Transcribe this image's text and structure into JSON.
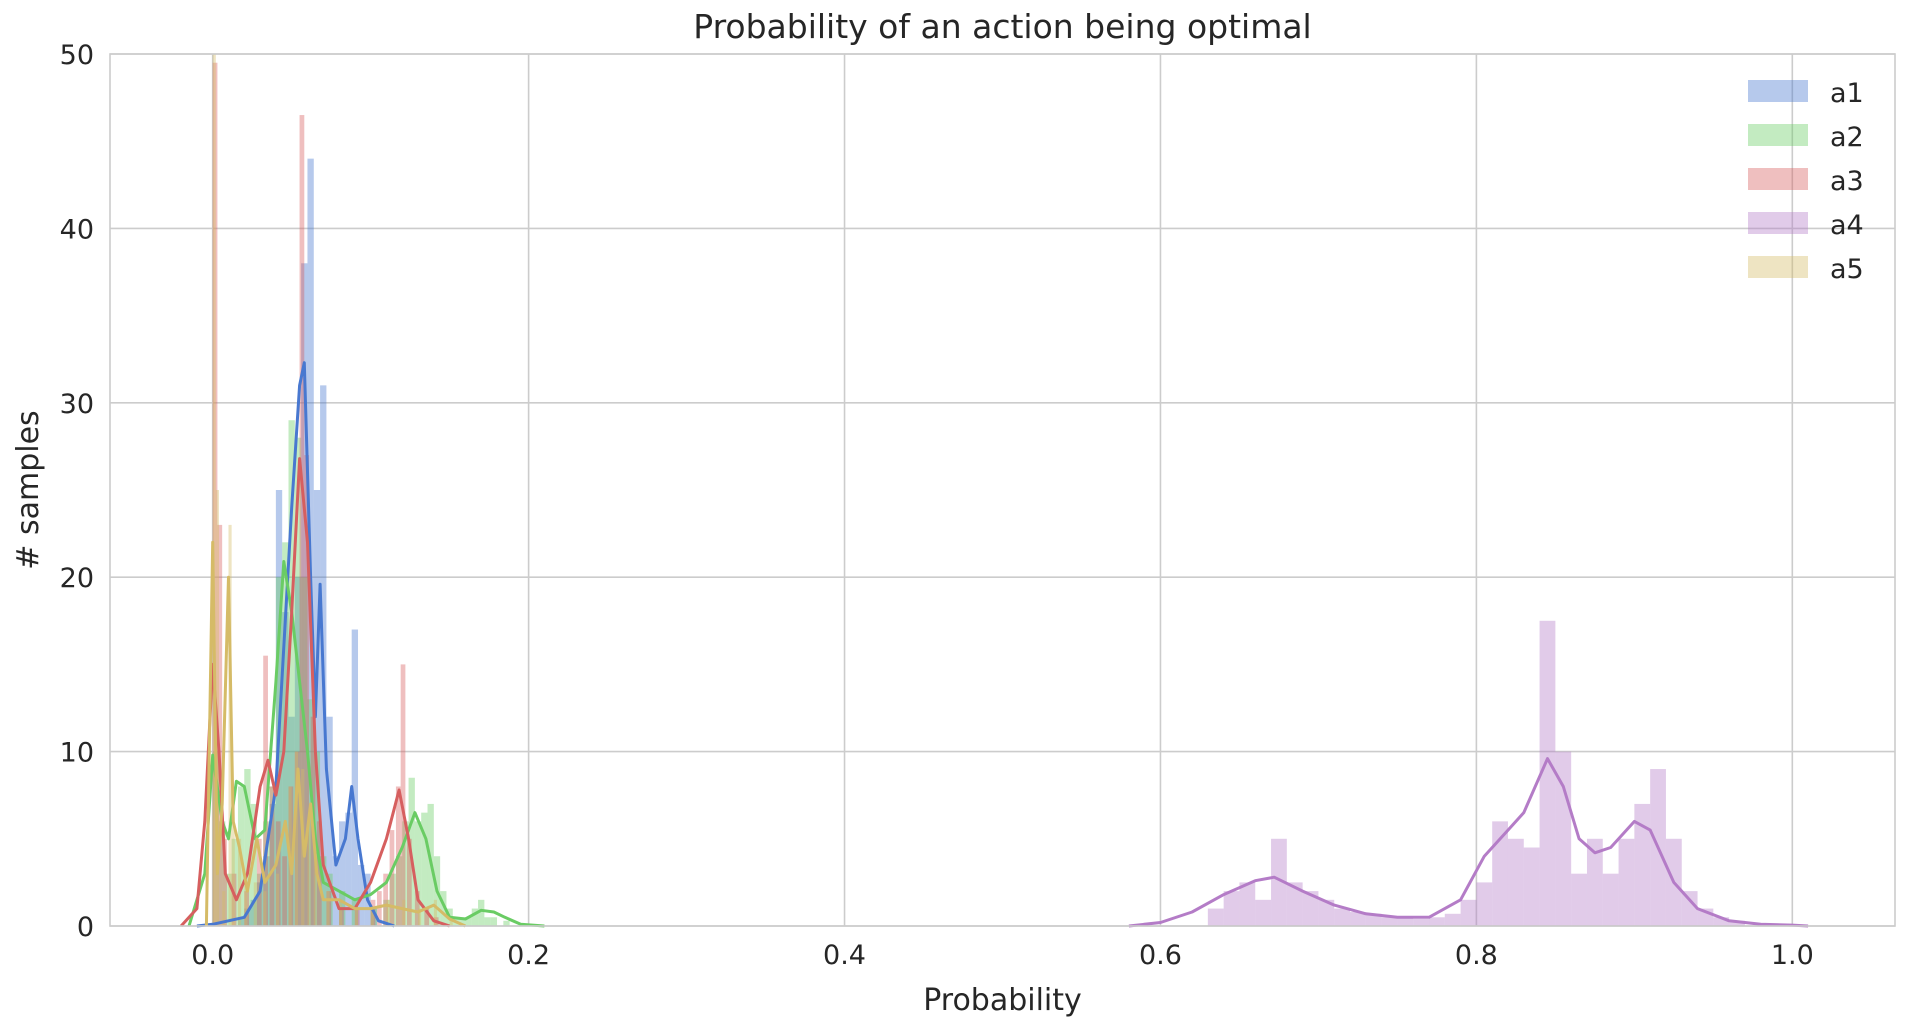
{
  "chart_data": {
    "type": "histogram",
    "title": "Probability of an action being optimal",
    "xlabel": "Probability",
    "ylabel": "# samples",
    "xlim": [
      -0.065,
      1.065
    ],
    "ylim": [
      0,
      50
    ],
    "xticks": [
      0.0,
      0.2,
      0.4,
      0.6,
      0.8,
      1.0
    ],
    "xtick_labels": [
      "0.0",
      "0.2",
      "0.4",
      "0.6",
      "0.8",
      "1.0"
    ],
    "yticks": [
      0,
      10,
      20,
      30,
      40,
      50
    ],
    "ytick_labels": [
      "0",
      "10",
      "20",
      "30",
      "40",
      "50"
    ],
    "grid": true,
    "legend_position": "top-right",
    "series": [
      {
        "name": "a1",
        "color": "#4878d0",
        "bin_width": 0.004,
        "bins": [
          [
            0.016,
            0.5
          ],
          [
            0.02,
            1.0
          ],
          [
            0.024,
            1.5
          ],
          [
            0.028,
            2.5
          ],
          [
            0.032,
            4.0
          ],
          [
            0.036,
            7.0
          ],
          [
            0.04,
            25.0
          ],
          [
            0.044,
            18.0
          ],
          [
            0.048,
            12.0
          ],
          [
            0.052,
            20.0
          ],
          [
            0.056,
            38.0
          ],
          [
            0.06,
            44.0
          ],
          [
            0.064,
            25.0
          ],
          [
            0.068,
            31.0
          ],
          [
            0.072,
            12.0
          ],
          [
            0.076,
            4.0
          ],
          [
            0.08,
            6.0
          ],
          [
            0.084,
            6.5
          ],
          [
            0.088,
            17.0
          ],
          [
            0.092,
            3.5
          ],
          [
            0.096,
            3.0
          ],
          [
            0.1,
            1.0
          ]
        ],
        "kde": [
          [
            -0.01,
            0
          ],
          [
            0.0,
            0.1
          ],
          [
            0.02,
            0.5
          ],
          [
            0.03,
            2.0
          ],
          [
            0.04,
            8.0
          ],
          [
            0.05,
            24.0
          ],
          [
            0.055,
            31.0
          ],
          [
            0.058,
            32.3
          ],
          [
            0.062,
            20.0
          ],
          [
            0.065,
            12.0
          ],
          [
            0.068,
            19.6
          ],
          [
            0.072,
            9.0
          ],
          [
            0.078,
            3.5
          ],
          [
            0.084,
            5.0
          ],
          [
            0.088,
            8.0
          ],
          [
            0.092,
            5.0
          ],
          [
            0.098,
            1.5
          ],
          [
            0.105,
            0.3
          ],
          [
            0.115,
            0
          ]
        ]
      },
      {
        "name": "a2",
        "color": "#6acc64",
        "bin_width": 0.004,
        "bins": [
          [
            0.0,
            10.0
          ],
          [
            0.004,
            6.0
          ],
          [
            0.008,
            3.0
          ],
          [
            0.012,
            5.0
          ],
          [
            0.016,
            8.0
          ],
          [
            0.02,
            9.0
          ],
          [
            0.024,
            7.0
          ],
          [
            0.028,
            3.0
          ],
          [
            0.032,
            6.0
          ],
          [
            0.036,
            8.0
          ],
          [
            0.04,
            20.0
          ],
          [
            0.044,
            22.0
          ],
          [
            0.048,
            29.0
          ],
          [
            0.052,
            28.0
          ],
          [
            0.056,
            20.0
          ],
          [
            0.06,
            13.0
          ],
          [
            0.064,
            10.0
          ],
          [
            0.068,
            4.0
          ],
          [
            0.072,
            3.0
          ],
          [
            0.08,
            2.0
          ],
          [
            0.088,
            1.5
          ],
          [
            0.1,
            1.0
          ],
          [
            0.108,
            1.5
          ],
          [
            0.112,
            3.0
          ],
          [
            0.116,
            4.0
          ],
          [
            0.12,
            6.0
          ],
          [
            0.124,
            8.5
          ],
          [
            0.128,
            6.0
          ],
          [
            0.132,
            6.5
          ],
          [
            0.136,
            7.0
          ],
          [
            0.14,
            4.0
          ],
          [
            0.144,
            2.0
          ],
          [
            0.148,
            1.0
          ],
          [
            0.152,
            0.5
          ],
          [
            0.156,
            0.5
          ],
          [
            0.16,
            0.5
          ],
          [
            0.164,
            1.0
          ],
          [
            0.168,
            1.5
          ],
          [
            0.172,
            0.5
          ],
          [
            0.176,
            0.5
          ],
          [
            0.184,
            0.3
          ]
        ],
        "kde": [
          [
            -0.015,
            0
          ],
          [
            -0.005,
            3.0
          ],
          [
            0.0,
            9.8
          ],
          [
            0.006,
            6.0
          ],
          [
            0.01,
            5.0
          ],
          [
            0.015,
            8.3
          ],
          [
            0.02,
            8.0
          ],
          [
            0.027,
            5.0
          ],
          [
            0.033,
            5.5
          ],
          [
            0.04,
            14.0
          ],
          [
            0.045,
            20.9
          ],
          [
            0.05,
            18.0
          ],
          [
            0.055,
            14.0
          ],
          [
            0.06,
            10.0
          ],
          [
            0.065,
            5.0
          ],
          [
            0.07,
            2.5
          ],
          [
            0.08,
            2.0
          ],
          [
            0.09,
            1.5
          ],
          [
            0.1,
            1.8
          ],
          [
            0.11,
            2.5
          ],
          [
            0.12,
            4.5
          ],
          [
            0.128,
            6.5
          ],
          [
            0.135,
            5.0
          ],
          [
            0.142,
            2.0
          ],
          [
            0.15,
            0.5
          ],
          [
            0.16,
            0.4
          ],
          [
            0.17,
            0.9
          ],
          [
            0.178,
            0.8
          ],
          [
            0.185,
            0.5
          ],
          [
            0.195,
            0.1
          ],
          [
            0.21,
            0
          ]
        ]
      },
      {
        "name": "a3",
        "color": "#d65f5f",
        "bin_width": 0.003,
        "bins": [
          [
            0.0,
            49.5
          ],
          [
            0.003,
            23.0
          ],
          [
            0.006,
            5.0
          ],
          [
            0.012,
            3.0
          ],
          [
            0.02,
            2.0
          ],
          [
            0.028,
            5.0
          ],
          [
            0.032,
            15.5
          ],
          [
            0.036,
            8.0
          ],
          [
            0.04,
            6.0
          ],
          [
            0.044,
            4.0
          ],
          [
            0.048,
            8.0
          ],
          [
            0.052,
            10.0
          ],
          [
            0.055,
            46.5
          ],
          [
            0.058,
            27.0
          ],
          [
            0.062,
            12.0
          ],
          [
            0.066,
            6.0
          ],
          [
            0.072,
            2.0
          ],
          [
            0.08,
            1.0
          ],
          [
            0.09,
            1.0
          ],
          [
            0.1,
            1.5
          ],
          [
            0.104,
            2.0
          ],
          [
            0.108,
            3.0
          ],
          [
            0.112,
            5.5
          ],
          [
            0.116,
            8.0
          ],
          [
            0.119,
            15.0
          ],
          [
            0.123,
            5.0
          ],
          [
            0.128,
            2.0
          ],
          [
            0.134,
            1.0
          ],
          [
            0.14,
            0.5
          ]
        ],
        "kde": [
          [
            -0.02,
            0
          ],
          [
            -0.01,
            1.0
          ],
          [
            -0.005,
            6.0
          ],
          [
            0.0,
            15.0
          ],
          [
            0.004,
            10.0
          ],
          [
            0.008,
            3.0
          ],
          [
            0.015,
            1.5
          ],
          [
            0.022,
            3.0
          ],
          [
            0.03,
            8.0
          ],
          [
            0.035,
            9.5
          ],
          [
            0.04,
            7.5
          ],
          [
            0.045,
            10.0
          ],
          [
            0.05,
            18.0
          ],
          [
            0.055,
            26.8
          ],
          [
            0.06,
            22.0
          ],
          [
            0.065,
            10.0
          ],
          [
            0.07,
            3.5
          ],
          [
            0.08,
            1.0
          ],
          [
            0.09,
            1.0
          ],
          [
            0.1,
            2.5
          ],
          [
            0.11,
            5.0
          ],
          [
            0.118,
            7.8
          ],
          [
            0.124,
            5.0
          ],
          [
            0.13,
            1.5
          ],
          [
            0.14,
            0.3
          ],
          [
            0.15,
            0
          ]
        ]
      },
      {
        "name": "a4",
        "color": "#b47cc7",
        "bin_width": 0.01,
        "bins": [
          [
            0.63,
            1.0
          ],
          [
            0.64,
            2.0
          ],
          [
            0.65,
            2.5
          ],
          [
            0.66,
            1.5
          ],
          [
            0.67,
            5.0
          ],
          [
            0.68,
            2.5
          ],
          [
            0.69,
            2.0
          ],
          [
            0.7,
            1.5
          ],
          [
            0.71,
            1.0
          ],
          [
            0.72,
            0.8
          ],
          [
            0.73,
            0.7
          ],
          [
            0.74,
            0.5
          ],
          [
            0.75,
            0.5
          ],
          [
            0.76,
            0.4
          ],
          [
            0.77,
            0.5
          ],
          [
            0.78,
            0.7
          ],
          [
            0.79,
            1.5
          ],
          [
            0.8,
            2.5
          ],
          [
            0.81,
            6.0
          ],
          [
            0.82,
            5.0
          ],
          [
            0.83,
            4.5
          ],
          [
            0.84,
            17.5
          ],
          [
            0.85,
            10.0
          ],
          [
            0.86,
            3.0
          ],
          [
            0.87,
            5.0
          ],
          [
            0.88,
            3.0
          ],
          [
            0.89,
            5.0
          ],
          [
            0.9,
            7.0
          ],
          [
            0.91,
            9.0
          ],
          [
            0.92,
            5.0
          ],
          [
            0.93,
            2.0
          ],
          [
            0.94,
            1.0
          ],
          [
            0.95,
            0.5
          ],
          [
            0.96,
            0.3
          ]
        ],
        "kde": [
          [
            0.58,
            0
          ],
          [
            0.6,
            0.2
          ],
          [
            0.62,
            0.8
          ],
          [
            0.64,
            1.8
          ],
          [
            0.66,
            2.6
          ],
          [
            0.672,
            2.8
          ],
          [
            0.69,
            2.0
          ],
          [
            0.71,
            1.2
          ],
          [
            0.73,
            0.7
          ],
          [
            0.75,
            0.5
          ],
          [
            0.77,
            0.5
          ],
          [
            0.79,
            1.5
          ],
          [
            0.805,
            4.0
          ],
          [
            0.82,
            5.5
          ],
          [
            0.83,
            6.5
          ],
          [
            0.845,
            9.6
          ],
          [
            0.855,
            8.0
          ],
          [
            0.865,
            5.0
          ],
          [
            0.875,
            4.2
          ],
          [
            0.885,
            4.5
          ],
          [
            0.9,
            6.0
          ],
          [
            0.91,
            5.5
          ],
          [
            0.925,
            2.5
          ],
          [
            0.94,
            1.0
          ],
          [
            0.96,
            0.3
          ],
          [
            0.98,
            0.1
          ],
          [
            1.0,
            0.05
          ],
          [
            1.01,
            0
          ]
        ]
      },
      {
        "name": "a5",
        "color": "#d5bb67",
        "bin_width": 0.002,
        "bins": [
          [
            0.0,
            50.0
          ],
          [
            0.002,
            25.0
          ],
          [
            0.006,
            2.0
          ],
          [
            0.01,
            23.0
          ],
          [
            0.012,
            8.0
          ],
          [
            0.016,
            5.0
          ],
          [
            0.02,
            3.0
          ],
          [
            0.026,
            2.5
          ],
          [
            0.032,
            2.0
          ],
          [
            0.04,
            3.0
          ],
          [
            0.048,
            8.0
          ],
          [
            0.052,
            10.0
          ],
          [
            0.056,
            9.0
          ],
          [
            0.06,
            6.0
          ],
          [
            0.064,
            4.0
          ],
          [
            0.072,
            2.0
          ],
          [
            0.08,
            1.5
          ],
          [
            0.09,
            1.0
          ],
          [
            0.1,
            1.0
          ],
          [
            0.11,
            1.5
          ],
          [
            0.12,
            1.5
          ],
          [
            0.13,
            1.0
          ],
          [
            0.14,
            1.5
          ],
          [
            0.15,
            0.5
          ]
        ],
        "kde": [
          [
            -0.004,
            0
          ],
          [
            0.0,
            22.0
          ],
          [
            0.003,
            3.0
          ],
          [
            0.006,
            7.0
          ],
          [
            0.01,
            20.0
          ],
          [
            0.013,
            6.0
          ],
          [
            0.017,
            4.5
          ],
          [
            0.022,
            2.0
          ],
          [
            0.028,
            5.0
          ],
          [
            0.033,
            2.5
          ],
          [
            0.04,
            3.5
          ],
          [
            0.046,
            6.0
          ],
          [
            0.05,
            3.0
          ],
          [
            0.054,
            9.0
          ],
          [
            0.058,
            4.0
          ],
          [
            0.062,
            7.0
          ],
          [
            0.066,
            3.0
          ],
          [
            0.07,
            1.5
          ],
          [
            0.08,
            1.5
          ],
          [
            0.09,
            1.0
          ],
          [
            0.1,
            1.0
          ],
          [
            0.11,
            1.2
          ],
          [
            0.12,
            1.0
          ],
          [
            0.13,
            0.8
          ],
          [
            0.14,
            1.2
          ],
          [
            0.15,
            0.4
          ],
          [
            0.16,
            0
          ]
        ]
      }
    ]
  }
}
